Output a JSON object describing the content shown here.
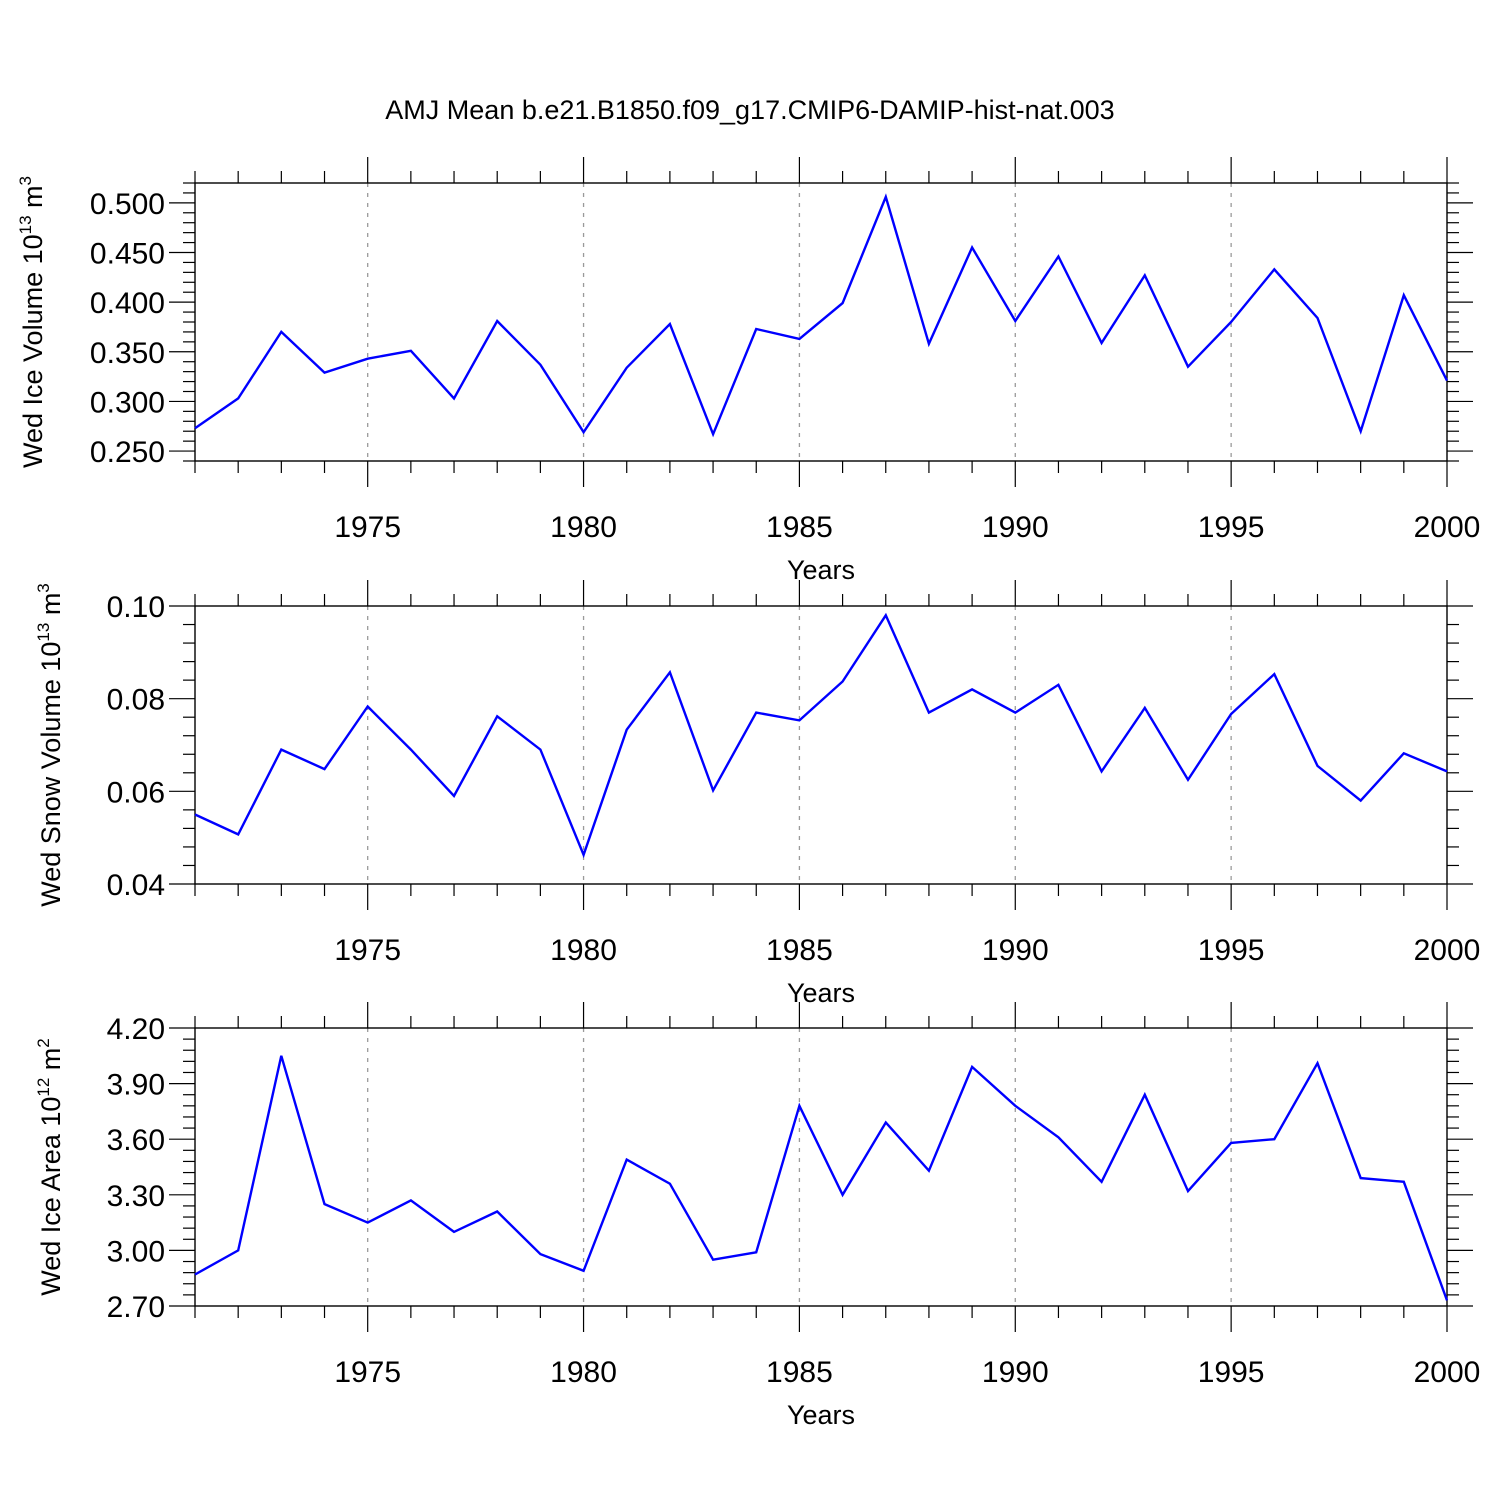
{
  "chart_data": {
    "title": "AMJ Mean b.e21.B1850.f09_g17.CMIP6-DAMIP-hist-nat.003",
    "line_color": "#0000ff",
    "panels": [
      {
        "type": "line",
        "ylabel": "Wed Ice Volume 10",
        "ylabel_exp": "13",
        "ylabel_unit": " m",
        "ylabel_unit_exp": "3",
        "xlabel": "Years",
        "xlim": [
          1971,
          2000
        ],
        "ylim": [
          0.24,
          0.52
        ],
        "x_major_ticks": [
          1975,
          1980,
          1985,
          1990,
          1995,
          2000
        ],
        "x_tick_labels": [
          "1975",
          "1980",
          "1985",
          "1990",
          "1995",
          "2000"
        ],
        "y_major_ticks": [
          0.25,
          0.3,
          0.35,
          0.4,
          0.45,
          0.5
        ],
        "y_tick_labels": [
          "0.250",
          "0.300",
          "0.350",
          "0.400",
          "0.450",
          "0.500"
        ],
        "y_minor_step": 0.01,
        "x": [
          1971,
          1972,
          1973,
          1974,
          1975,
          1976,
          1977,
          1978,
          1979,
          1980,
          1981,
          1982,
          1983,
          1984,
          1985,
          1986,
          1987,
          1988,
          1989,
          1990,
          1991,
          1992,
          1993,
          1994,
          1995,
          1996,
          1997,
          1998,
          1999,
          2000
        ],
        "values": [
          0.273,
          0.303,
          0.37,
          0.329,
          0.343,
          0.351,
          0.303,
          0.381,
          0.337,
          0.269,
          0.334,
          0.378,
          0.267,
          0.373,
          0.363,
          0.399,
          0.506,
          0.358,
          0.455,
          0.381,
          0.446,
          0.359,
          0.427,
          0.335,
          0.38,
          0.433,
          0.384,
          0.27,
          0.407,
          0.321
        ]
      },
      {
        "type": "line",
        "ylabel": "Wed Snow Volume 10",
        "ylabel_exp": "13",
        "ylabel_unit": " m",
        "ylabel_unit_exp": "3",
        "xlabel": "Years",
        "xlim": [
          1971,
          2000
        ],
        "ylim": [
          0.04,
          0.1
        ],
        "x_major_ticks": [
          1975,
          1980,
          1985,
          1990,
          1995,
          2000
        ],
        "x_tick_labels": [
          "1975",
          "1980",
          "1985",
          "1990",
          "1995",
          "2000"
        ],
        "y_major_ticks": [
          0.04,
          0.06,
          0.08,
          0.1
        ],
        "y_tick_labels": [
          "0.04",
          "0.06",
          "0.08",
          "0.10"
        ],
        "y_minor_step": 0.004,
        "x": [
          1971,
          1972,
          1973,
          1974,
          1975,
          1976,
          1977,
          1978,
          1979,
          1980,
          1981,
          1982,
          1983,
          1984,
          1985,
          1986,
          1987,
          1988,
          1989,
          1990,
          1991,
          1992,
          1993,
          1994,
          1995,
          1996,
          1997,
          1998,
          1999,
          2000
        ],
        "values": [
          0.055,
          0.0507,
          0.069,
          0.0648,
          0.0783,
          0.069,
          0.059,
          0.0762,
          0.069,
          0.0463,
          0.0733,
          0.0857,
          0.0602,
          0.077,
          0.0753,
          0.0837,
          0.098,
          0.077,
          0.082,
          0.077,
          0.083,
          0.0643,
          0.078,
          0.0625,
          0.0767,
          0.0853,
          0.0655,
          0.058,
          0.0682,
          0.0643
        ]
      },
      {
        "type": "line",
        "ylabel": "Wed Ice Area 10",
        "ylabel_exp": "12",
        "ylabel_unit": " m",
        "ylabel_unit_exp": "2",
        "xlabel": "Years",
        "xlim": [
          1971,
          2000
        ],
        "ylim": [
          2.7,
          4.2
        ],
        "x_major_ticks": [
          1975,
          1980,
          1985,
          1990,
          1995,
          2000
        ],
        "x_tick_labels": [
          "1975",
          "1980",
          "1985",
          "1990",
          "1995",
          "2000"
        ],
        "y_major_ticks": [
          2.7,
          3.0,
          3.3,
          3.6,
          3.9,
          4.2
        ],
        "y_tick_labels": [
          "2.70",
          "3.00",
          "3.30",
          "3.60",
          "3.90",
          "4.20"
        ],
        "y_minor_step": 0.06,
        "x": [
          1971,
          1972,
          1973,
          1974,
          1975,
          1976,
          1977,
          1978,
          1979,
          1980,
          1981,
          1982,
          1983,
          1984,
          1985,
          1986,
          1987,
          1988,
          1989,
          1990,
          1991,
          1992,
          1993,
          1994,
          1995,
          1996,
          1997,
          1998,
          1999,
          2000
        ],
        "values": [
          2.87,
          3.0,
          4.05,
          3.25,
          3.15,
          3.27,
          3.1,
          3.21,
          2.98,
          2.89,
          3.49,
          3.36,
          2.95,
          2.99,
          3.78,
          3.3,
          3.69,
          3.43,
          3.99,
          3.78,
          3.61,
          3.37,
          3.84,
          3.32,
          3.58,
          3.6,
          4.01,
          3.39,
          3.37,
          2.73
        ]
      }
    ]
  }
}
